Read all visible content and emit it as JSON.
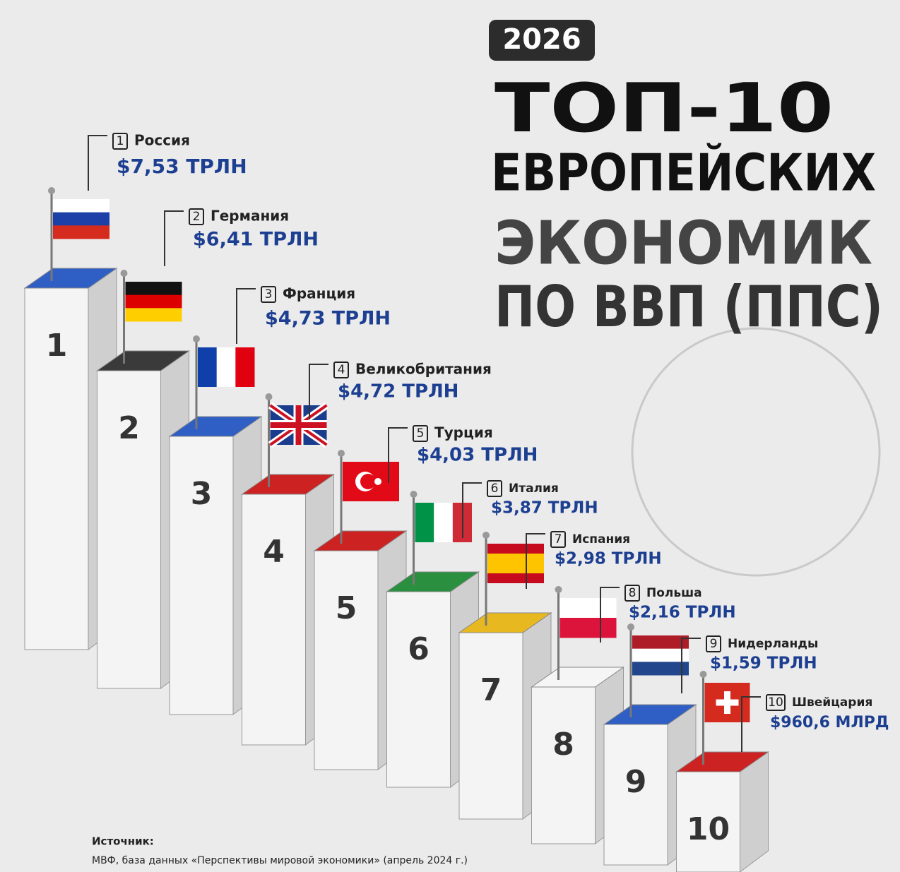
{
  "header": {
    "year": "2026",
    "title_lines": [
      "ТОП-10",
      "ЕВРОПЕЙСКИХ",
      "ЭКОНОМИК",
      "ПО ВВП (ППС)"
    ]
  },
  "items": [
    {
      "rank": "1",
      "country": "Россия",
      "value": "$7,53 ТРЛН"
    },
    {
      "rank": "2",
      "country": "Германия",
      "value": "$6,41 ТРЛН"
    },
    {
      "rank": "3",
      "country": "Франция",
      "value": "$4,73 ТРЛН"
    },
    {
      "rank": "4",
      "country": "Великобритания",
      "value": "$4,72 ТРЛН"
    },
    {
      "rank": "5",
      "country": "Турция",
      "value": "$4,03 ТРЛН"
    },
    {
      "rank": "6",
      "country": "Италия",
      "value": "$3,87 ТРЛН"
    },
    {
      "rank": "7",
      "country": "Испания",
      "value": "$2,98 ТРЛН"
    },
    {
      "rank": "8",
      "country": "Польша",
      "value": "$2,16 ТРЛН"
    },
    {
      "rank": "9",
      "country": "Нидерланды",
      "value": "$1,59 ТРЛН"
    },
    {
      "rank": "10",
      "country": "Швейцария",
      "value": "$960,6 МЛРД"
    }
  ],
  "source": {
    "label": "Источник:",
    "text": "МВФ, база данных «Перспективы мировой экономики» (апрель 2024 г.)"
  }
}
